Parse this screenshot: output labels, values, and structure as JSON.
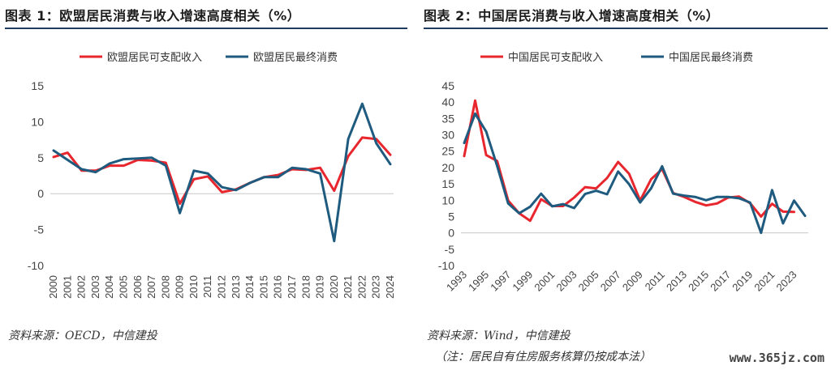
{
  "figures": [
    {
      "title": "图表 1：欧盟居民消费与收入增速高度相关（%）",
      "source": "资料来源：OECD，中信建投",
      "chart_data": {
        "type": "line",
        "x": [
          "2000",
          "2001",
          "2002",
          "2003",
          "2004",
          "2005",
          "2006",
          "2007",
          "2008",
          "2009",
          "2010",
          "2011",
          "2012",
          "2013",
          "2014",
          "2015",
          "2016",
          "2017",
          "2018",
          "2019",
          "2020",
          "2021",
          "2022",
          "2023",
          "2024"
        ],
        "yticks": [
          15,
          10,
          5,
          0,
          -5,
          -10
        ],
        "ylim": [
          -10,
          15
        ],
        "series": [
          {
            "name": "欧盟居民可支配收入",
            "color": "#e8262d",
            "values": [
              5.1,
              5.7,
              3.2,
              3.2,
              3.9,
              3.9,
              4.7,
              4.6,
              4.3,
              -1.4,
              2.0,
              2.4,
              0.2,
              0.6,
              1.5,
              2.3,
              2.6,
              3.4,
              3.3,
              3.6,
              0.4,
              5.2,
              7.8,
              7.6,
              5.4
            ]
          },
          {
            "name": "欧盟居民最终消费",
            "color": "#1f5a7f",
            "values": [
              6.0,
              4.7,
              3.4,
              3.0,
              4.2,
              4.8,
              4.9,
              5.0,
              3.9,
              -2.7,
              3.2,
              2.8,
              0.9,
              0.5,
              1.5,
              2.3,
              2.3,
              3.6,
              3.4,
              2.8,
              -6.6,
              7.6,
              12.5,
              7.0,
              4.1
            ]
          }
        ]
      }
    },
    {
      "title": "图表 2：中国居民消费与收入增速高度相关（%）",
      "source": "资料来源：Wind，中信建投",
      "note": "（注：居民自有住房服务核算仍按成本法）",
      "chart_data": {
        "type": "line",
        "x": [
          "1993",
          "1994",
          "1995",
          "1996",
          "1997",
          "1998",
          "1999",
          "2000",
          "2001",
          "2002",
          "2003",
          "2004",
          "2005",
          "2006",
          "2007",
          "2008",
          "2009",
          "2010",
          "2011",
          "2012",
          "2013",
          "2014",
          "2015",
          "2016",
          "2017",
          "2018",
          "2019",
          "2020",
          "2021",
          "2022",
          "2023",
          "2024"
        ],
        "xtick_labels": [
          "1993",
          "1995",
          "1997",
          "1999",
          "2001",
          "2003",
          "2005",
          "2007",
          "2009",
          "2011",
          "2013",
          "2015",
          "2017",
          "2019",
          "2021",
          "2023"
        ],
        "yticks": [
          45,
          40,
          35,
          30,
          25,
          20,
          15,
          10,
          5,
          0,
          -5,
          -10
        ],
        "ylim": [
          -10,
          45
        ],
        "series": [
          {
            "name": "中国居民可支配收入",
            "color": "#e8262d",
            "values": [
              23.5,
              40.5,
              23.8,
              22.0,
              9.9,
              6.0,
              3.7,
              10.3,
              8.2,
              8.2,
              10.8,
              14.0,
              13.6,
              16.8,
              21.7,
              18.1,
              9.9,
              16.4,
              19.5,
              12.2,
              11.0,
              9.5,
              8.4,
              9.0,
              10.8,
              11.1,
              9.1,
              5.0,
              8.9,
              6.5,
              6.4,
              null
            ]
          },
          {
            "name": "中国居民最终消费",
            "color": "#1f5a7f",
            "values": [
              27.5,
              36.5,
              31.0,
              20.5,
              9.0,
              6.0,
              8.0,
              12.0,
              8.1,
              8.8,
              7.6,
              11.9,
              12.9,
              11.8,
              18.8,
              14.9,
              9.3,
              13.6,
              20.4,
              12.0,
              11.4,
              11.0,
              10.0,
              11.0,
              11.0,
              10.6,
              9.3,
              0.0,
              13.1,
              2.9,
              9.9,
              5.2
            ]
          }
        ]
      }
    }
  ],
  "watermark": "www.365jz.com"
}
